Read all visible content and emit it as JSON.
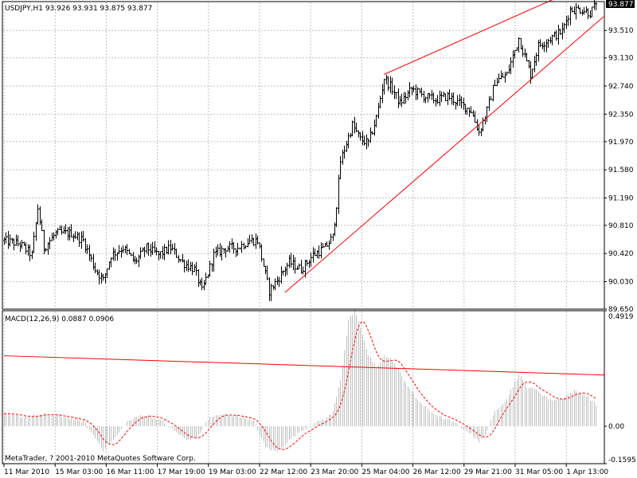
{
  "price_panel": {
    "header": "USDJPY,H1  93.926 93.931 93.875 93.877",
    "current_price_label": "93.877",
    "price_ticks": [
      "93.510",
      "93.130",
      "92.740",
      "92.350",
      "91.970",
      "91.580",
      "91.190",
      "90.810",
      "90.420",
      "90.030",
      "89.650"
    ]
  },
  "macd_panel": {
    "header": "MACD(12,26,9) 0.0887 0.0906",
    "ticks": [
      "0.4919",
      "0.00",
      "-0.1595"
    ],
    "copyright": "MetaTrader, ? 2001-2010 MetaQuotes Software Corp."
  },
  "time_axis": {
    "labels": [
      "11 Mar 2010",
      "15 Mar 03:00",
      "16 Mar 11:00",
      "17 Mar 19:00",
      "19 Mar 03:00",
      "22 Mar 12:00",
      "23 Mar 20:00",
      "25 Mar 04:00",
      "26 Mar 12:00",
      "29 Mar 21:00",
      "31 Mar 05:00",
      "1 Apr 13:00"
    ]
  },
  "colors": {
    "background": "#ffffff",
    "bars": "#000000",
    "trendline": "#ff0000",
    "macd_histogram": "#c0c0c0",
    "macd_signal": "#ff0000",
    "grid": "#c0c0c0"
  },
  "chart_data": [
    {
      "type": "bar",
      "subtype": "ohlc",
      "symbol": "USDJPY",
      "timeframe": "H1",
      "ylim": [
        89.65,
        93.91
      ],
      "last_price": 93.877,
      "anchors": [
        [
          0,
          90.6
        ],
        [
          8,
          90.55
        ],
        [
          14,
          90.4
        ],
        [
          17,
          91.05
        ],
        [
          20,
          90.5
        ],
        [
          26,
          90.7
        ],
        [
          34,
          90.7
        ],
        [
          40,
          90.6
        ],
        [
          46,
          90.2
        ],
        [
          50,
          90.05
        ],
        [
          54,
          90.4
        ],
        [
          60,
          90.5
        ],
        [
          66,
          90.3
        ],
        [
          72,
          90.5
        ],
        [
          78,
          90.4
        ],
        [
          84,
          90.5
        ],
        [
          90,
          90.3
        ],
        [
          96,
          90.2
        ],
        [
          100,
          89.9
        ],
        [
          106,
          90.4
        ],
        [
          112,
          90.5
        ],
        [
          118,
          90.5
        ],
        [
          124,
          90.6
        ],
        [
          128,
          90.6
        ],
        [
          134,
          89.9
        ],
        [
          138,
          90.05
        ],
        [
          144,
          90.3
        ],
        [
          150,
          90.2
        ],
        [
          156,
          90.4
        ],
        [
          162,
          90.5
        ],
        [
          166,
          90.65
        ],
        [
          168,
          91.1
        ],
        [
          170,
          91.7
        ],
        [
          176,
          92.2
        ],
        [
          180,
          92.0
        ],
        [
          184,
          91.95
        ],
        [
          188,
          92.3
        ],
        [
          192,
          92.85
        ],
        [
          196,
          92.7
        ],
        [
          200,
          92.5
        ],
        [
          206,
          92.7
        ],
        [
          212,
          92.6
        ],
        [
          218,
          92.55
        ],
        [
          224,
          92.6
        ],
        [
          230,
          92.5
        ],
        [
          236,
          92.4
        ],
        [
          240,
          92.1
        ],
        [
          244,
          92.4
        ],
        [
          248,
          92.8
        ],
        [
          254,
          92.9
        ],
        [
          260,
          93.4
        ],
        [
          266,
          92.9
        ],
        [
          270,
          93.3
        ],
        [
          276,
          93.4
        ],
        [
          282,
          93.5
        ],
        [
          286,
          93.8
        ],
        [
          292,
          93.8
        ],
        [
          296,
          93.75
        ],
        [
          299,
          93.877
        ]
      ],
      "trendlines": [
        {
          "from": [
            192,
            92.9
          ],
          "to": [
            305,
            94.25
          ]
        },
        {
          "from": [
            142,
            89.88
          ],
          "to": [
            305,
            93.7
          ]
        }
      ]
    },
    {
      "type": "bar",
      "subtype": "macd",
      "name": "MACD(12,26,9)",
      "macd_value": 0.0887,
      "signal_value": 0.0906,
      "ylim": [
        -0.1595,
        0.4919
      ],
      "anchors": [
        [
          0,
          0.05
        ],
        [
          10,
          0.04
        ],
        [
          20,
          0.05
        ],
        [
          30,
          0.04
        ],
        [
          40,
          0.02
        ],
        [
          46,
          -0.05
        ],
        [
          50,
          -0.1
        ],
        [
          56,
          -0.05
        ],
        [
          62,
          0.02
        ],
        [
          70,
          0.05
        ],
        [
          78,
          0.03
        ],
        [
          86,
          -0.02
        ],
        [
          92,
          -0.06
        ],
        [
          98,
          -0.04
        ],
        [
          104,
          0.04
        ],
        [
          112,
          0.05
        ],
        [
          120,
          0.04
        ],
        [
          126,
          0.02
        ],
        [
          132,
          -0.09
        ],
        [
          138,
          -0.11
        ],
        [
          144,
          -0.06
        ],
        [
          150,
          -0.02
        ],
        [
          156,
          0.01
        ],
        [
          162,
          0.03
        ],
        [
          166,
          0.06
        ],
        [
          170,
          0.2
        ],
        [
          174,
          0.45
        ],
        [
          177,
          0.49
        ],
        [
          180,
          0.42
        ],
        [
          184,
          0.3
        ],
        [
          188,
          0.25
        ],
        [
          192,
          0.3
        ],
        [
          196,
          0.28
        ],
        [
          202,
          0.2
        ],
        [
          208,
          0.12
        ],
        [
          214,
          0.07
        ],
        [
          220,
          0.04
        ],
        [
          226,
          0.02
        ],
        [
          230,
          0.0
        ],
        [
          236,
          -0.03
        ],
        [
          240,
          -0.07
        ],
        [
          244,
          -0.02
        ],
        [
          248,
          0.06
        ],
        [
          254,
          0.12
        ],
        [
          260,
          0.22
        ],
        [
          264,
          0.17
        ],
        [
          270,
          0.15
        ],
        [
          276,
          0.11
        ],
        [
          282,
          0.12
        ],
        [
          288,
          0.15
        ],
        [
          294,
          0.13
        ],
        [
          299,
          0.09
        ]
      ],
      "trendline": {
        "from": [
          0,
          0.3
        ],
        "to": [
          312,
          0.218
        ]
      }
    }
  ]
}
